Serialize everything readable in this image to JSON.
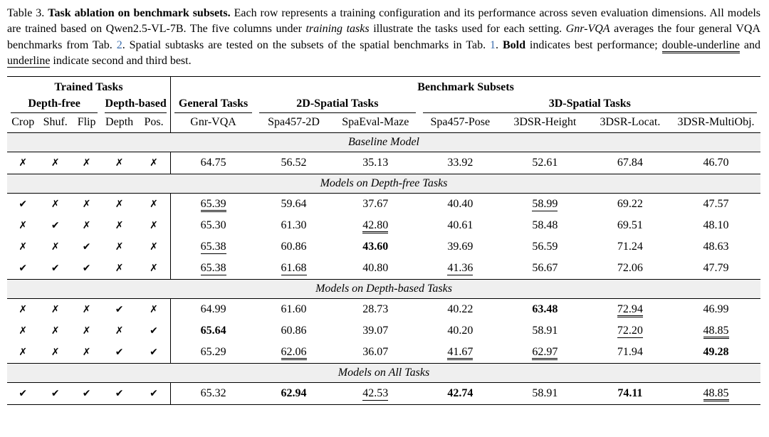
{
  "colors": {
    "link_blue": "#3e6fae",
    "section_bg": "#efefef"
  },
  "marks": {
    "check": "✔",
    "cross": "✗"
  },
  "caption": {
    "segments": [
      {
        "t": "Table 3. ",
        "s": "n"
      },
      {
        "t": "Task ablation on benchmark subsets.",
        "s": "b"
      },
      {
        "t": " Each row represents a training configuration and its performance across seven evaluation dimensions. All models are trained based on Qwen2.5-VL-7B. The five columns under ",
        "s": "n"
      },
      {
        "t": "training tasks",
        "s": "i"
      },
      {
        "t": " illustrate the tasks used for each setting. ",
        "s": "n"
      },
      {
        "t": "Gnr-VQA",
        "s": "i"
      },
      {
        "t": " averages the four general VQA benchmarks from Tab. ",
        "s": "n"
      },
      {
        "t": "2",
        "s": "link"
      },
      {
        "t": ". Spatial subtasks are tested on the subsets of the spatial benchmarks in Tab. ",
        "s": "n"
      },
      {
        "t": "1",
        "s": "link"
      },
      {
        "t": ". ",
        "s": "n"
      },
      {
        "t": "Bold",
        "s": "b"
      },
      {
        "t": " indicates best performance; ",
        "s": "n"
      },
      {
        "t": "double-underline",
        "s": "uu"
      },
      {
        "t": " and ",
        "s": "n"
      },
      {
        "t": "underline",
        "s": "u"
      },
      {
        "t": " indicate second and third best.",
        "s": "n"
      }
    ]
  },
  "table": {
    "header": {
      "row1": [
        {
          "label": "Trained Tasks",
          "span": 5
        },
        {
          "label": "Benchmark Subsets",
          "span": 7
        }
      ],
      "row2": [
        {
          "label": "Depth-free",
          "span": 3
        },
        {
          "label": "Depth-based",
          "span": 2
        },
        {
          "label": "General Tasks",
          "span": 1
        },
        {
          "label": "2D-Spatial Tasks",
          "span": 2
        },
        {
          "label": "3D-Spatial Tasks",
          "span": 4
        }
      ],
      "row3": [
        "Crop",
        "Shuf.",
        "Flip",
        "Depth",
        "Pos.",
        "Gnr-VQA",
        "Spa457-2D",
        "SpaEval-Maze",
        "Spa457-Pose",
        "3DSR-Height",
        "3DSR-Locat.",
        "3DSR-MultiObj."
      ]
    },
    "sections": [
      {
        "title": "Baseline Model",
        "rows": [
          {
            "tasks": [
              false,
              false,
              false,
              false,
              false
            ],
            "values": [
              {
                "v": "64.75"
              },
              {
                "v": "56.52"
              },
              {
                "v": "35.13"
              },
              {
                "v": "33.92"
              },
              {
                "v": "52.61"
              },
              {
                "v": "67.84"
              },
              {
                "v": "46.70"
              }
            ]
          }
        ]
      },
      {
        "title": "Models on Depth-free Tasks",
        "rows": [
          {
            "tasks": [
              true,
              false,
              false,
              false,
              false
            ],
            "values": [
              {
                "v": "65.39",
                "f": "uu"
              },
              {
                "v": "59.64"
              },
              {
                "v": "37.67"
              },
              {
                "v": "40.40"
              },
              {
                "v": "58.99",
                "f": "u"
              },
              {
                "v": "69.22"
              },
              {
                "v": "47.57"
              }
            ]
          },
          {
            "tasks": [
              false,
              true,
              false,
              false,
              false
            ],
            "values": [
              {
                "v": "65.30"
              },
              {
                "v": "61.30"
              },
              {
                "v": "42.80",
                "f": "uu"
              },
              {
                "v": "40.61"
              },
              {
                "v": "58.48"
              },
              {
                "v": "69.51"
              },
              {
                "v": "48.10"
              }
            ]
          },
          {
            "tasks": [
              false,
              false,
              true,
              false,
              false
            ],
            "values": [
              {
                "v": "65.38",
                "f": "u"
              },
              {
                "v": "60.86"
              },
              {
                "v": "43.60",
                "f": "b"
              },
              {
                "v": "39.69"
              },
              {
                "v": "56.59"
              },
              {
                "v": "71.24"
              },
              {
                "v": "48.63"
              }
            ]
          },
          {
            "tasks": [
              true,
              true,
              true,
              false,
              false
            ],
            "values": [
              {
                "v": "65.38",
                "f": "u"
              },
              {
                "v": "61.68",
                "f": "u"
              },
              {
                "v": "40.80"
              },
              {
                "v": "41.36",
                "f": "u"
              },
              {
                "v": "56.67"
              },
              {
                "v": "72.06"
              },
              {
                "v": "47.79"
              }
            ]
          }
        ]
      },
      {
        "title": "Models on Depth-based Tasks",
        "rows": [
          {
            "tasks": [
              false,
              false,
              false,
              true,
              false
            ],
            "values": [
              {
                "v": "64.99"
              },
              {
                "v": "61.60"
              },
              {
                "v": "28.73"
              },
              {
                "v": "40.22"
              },
              {
                "v": "63.48",
                "f": "b"
              },
              {
                "v": "72.94",
                "f": "uu"
              },
              {
                "v": "46.99"
              }
            ]
          },
          {
            "tasks": [
              false,
              false,
              false,
              false,
              true
            ],
            "values": [
              {
                "v": "65.64",
                "f": "b"
              },
              {
                "v": "60.86"
              },
              {
                "v": "39.07"
              },
              {
                "v": "40.20"
              },
              {
                "v": "58.91"
              },
              {
                "v": "72.20",
                "f": "u"
              },
              {
                "v": "48.85",
                "f": "uu"
              }
            ]
          },
          {
            "tasks": [
              false,
              false,
              false,
              true,
              true
            ],
            "values": [
              {
                "v": "65.29"
              },
              {
                "v": "62.06",
                "f": "uu"
              },
              {
                "v": "36.07"
              },
              {
                "v": "41.67",
                "f": "uu"
              },
              {
                "v": "62.97",
                "f": "uu"
              },
              {
                "v": "71.94"
              },
              {
                "v": "49.28",
                "f": "b"
              }
            ]
          }
        ]
      },
      {
        "title": "Models on All Tasks",
        "rows": [
          {
            "tasks": [
              true,
              true,
              true,
              true,
              true
            ],
            "values": [
              {
                "v": "65.32"
              },
              {
                "v": "62.94",
                "f": "b"
              },
              {
                "v": "42.53",
                "f": "u"
              },
              {
                "v": "42.74",
                "f": "b"
              },
              {
                "v": "58.91"
              },
              {
                "v": "74.11",
                "f": "b"
              },
              {
                "v": "48.85",
                "f": "uu"
              }
            ]
          }
        ]
      }
    ]
  }
}
